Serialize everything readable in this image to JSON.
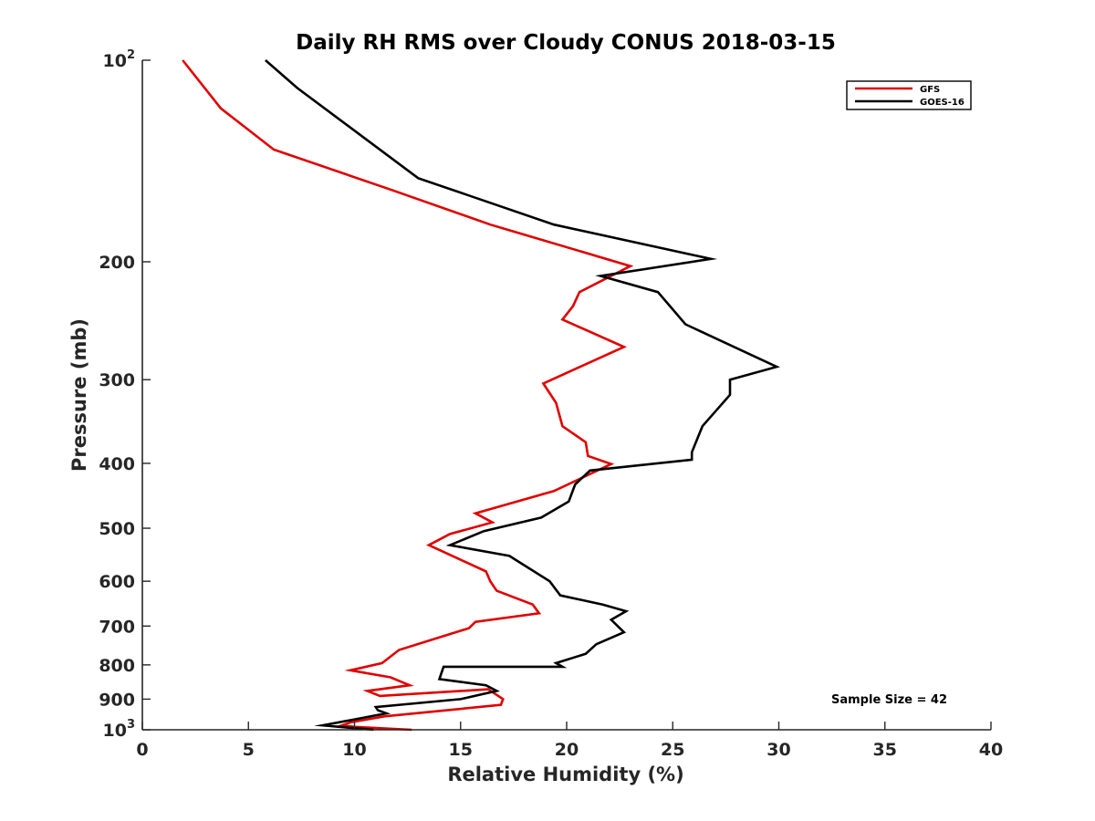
{
  "chart_data": {
    "type": "line",
    "title": "Daily RH RMS over Cloudy CONUS 2018-03-15",
    "xlabel": "Relative Humidity (%)",
    "ylabel": "Pressure (mb)",
    "xlim": [
      0,
      40
    ],
    "ylim": [
      100,
      1000
    ],
    "yscale": "log",
    "y_reversed": true,
    "xticks": [
      0,
      5,
      10,
      15,
      20,
      25,
      30,
      35,
      40
    ],
    "xtick_labels": [
      "0",
      "5",
      "10",
      "15",
      "20",
      "25",
      "30",
      "35",
      "40"
    ],
    "yticks": [
      100,
      200,
      300,
      400,
      500,
      600,
      700,
      800,
      900,
      1000
    ],
    "ytick_labels": [
      {
        "base": "10",
        "exp": "2"
      },
      {
        "base": "200",
        "exp": ""
      },
      {
        "base": "300",
        "exp": ""
      },
      {
        "base": "400",
        "exp": ""
      },
      {
        "base": "500",
        "exp": ""
      },
      {
        "base": "600",
        "exp": ""
      },
      {
        "base": "700",
        "exp": ""
      },
      {
        "base": "800",
        "exp": ""
      },
      {
        "base": "900",
        "exp": ""
      },
      {
        "base": "10",
        "exp": "3"
      }
    ],
    "grid": false,
    "legend_position": "top-right",
    "annotation": "Sample Size = 42",
    "series": [
      {
        "name": "GFS",
        "color": "#e00000",
        "x": [
          1.9,
          3.7,
          6.2,
          11.7,
          16.4,
          23.0,
          20.6,
          20.3,
          19.8,
          22.7,
          18.9,
          19.5,
          19.8,
          20.9,
          21.0,
          22.1,
          19.4,
          15.7,
          16.5,
          14.5,
          13.5,
          16.2,
          16.4,
          16.7,
          18.4,
          18.7,
          15.7,
          15.4,
          12.1,
          11.3,
          9.8,
          11.7,
          12.6,
          10.6,
          11.2,
          16.3,
          17.0,
          16.9,
          11.4,
          9.8,
          9.4,
          10.0,
          12.7
        ],
        "y": [
          100,
          118,
          136,
          156,
          176,
          203,
          222,
          233,
          244,
          268,
          304,
          325,
          352,
          372,
          390,
          401,
          440,
          475,
          490,
          510,
          530,
          580,
          600,
          620,
          650,
          670,
          690,
          705,
          760,
          795,
          815,
          835,
          858,
          875,
          890,
          870,
          900,
          918,
          955,
          975,
          985,
          990,
          1000
        ]
      },
      {
        "name": "GOES-16",
        "color": "#000000",
        "x": [
          5.8,
          5.8,
          7.3,
          13.0,
          19.4,
          26.8,
          21.6,
          24.3,
          25.6,
          29.9,
          27.7,
          27.7,
          26.4,
          25.9,
          25.9,
          21.1,
          20.4,
          20.1,
          18.8,
          16.1,
          14.5,
          17.3,
          19.2,
          19.7,
          21.7,
          22.8,
          22.1,
          22.7,
          21.4,
          20.9,
          19.5,
          19.8,
          14.2,
          14.0,
          16.2,
          16.7,
          15.0,
          11.0,
          11.1,
          11.5,
          8.5,
          10.9
        ],
        "y": [
          100,
          100,
          110,
          150,
          176,
          198,
          210,
          222,
          248,
          287,
          300,
          316,
          352,
          385,
          395,
          410,
          430,
          456,
          482,
          505,
          530,
          550,
          600,
          630,
          650,
          665,
          685,
          715,
          745,
          770,
          795,
          805,
          805,
          840,
          858,
          875,
          900,
          925,
          935,
          945,
          985,
          1000
        ]
      }
    ]
  }
}
